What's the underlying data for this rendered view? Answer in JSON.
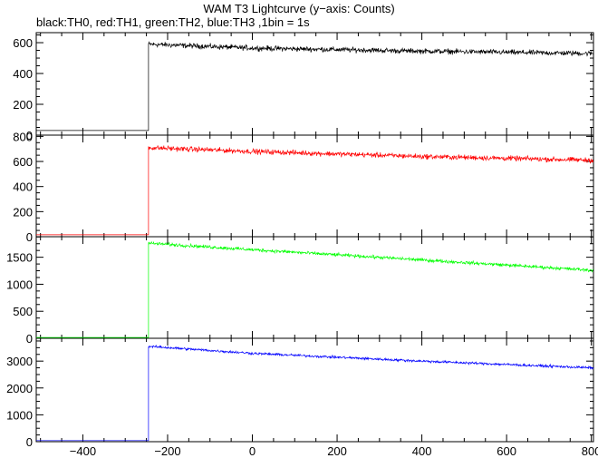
{
  "title": "WAM T3 Lightcurve (y−axis: Counts)",
  "subtitle": "black:TH0, red:TH1, green:TH2, blue:TH3 ,1bin = 1s",
  "chart_data": {
    "type": "line",
    "x_range": [
      -510,
      805
    ],
    "x_ticks": [
      -400,
      -200,
      0,
      200,
      400,
      600,
      800
    ],
    "x_tick_labels": [
      "−400",
      "−200",
      "0",
      "200",
      "400",
      "600",
      "800"
    ],
    "grid": false,
    "step_time": -245,
    "panels": [
      {
        "series": "TH0",
        "color": "#000000",
        "ylim": [
          0,
          665
        ],
        "yticks": [
          0,
          200,
          400,
          600
        ],
        "ytick_labels": [
          "0",
          "200",
          "400",
          "600"
        ],
        "pre_level": 30,
        "post_trend": [
          [
            -245,
            590
          ],
          [
            0,
            565
          ],
          [
            400,
            545
          ],
          [
            800,
            530
          ]
        ],
        "noise_amplitude": 25
      },
      {
        "series": "TH1",
        "color": "#ff0000",
        "ylim": [
          0,
          810
        ],
        "yticks": [
          0,
          200,
          400,
          600,
          800
        ],
        "ytick_labels": [
          "0",
          "200",
          "400",
          "600",
          "800"
        ],
        "pre_level": 15,
        "post_trend": [
          [
            -245,
            710
          ],
          [
            0,
            680
          ],
          [
            400,
            640
          ],
          [
            800,
            610
          ]
        ],
        "noise_amplitude": 30
      },
      {
        "series": "TH2",
        "color": "#00ff00",
        "ylim": [
          0,
          1880
        ],
        "yticks": [
          0,
          500,
          1000,
          1500
        ],
        "ytick_labels": [
          "0",
          "500",
          "1000",
          "1500"
        ],
        "pre_level": 15,
        "post_trend": [
          [
            -245,
            1760
          ],
          [
            0,
            1640
          ],
          [
            400,
            1450
          ],
          [
            800,
            1260
          ]
        ],
        "noise_amplitude": 45
      },
      {
        "series": "TH3",
        "color": "#0000ff",
        "ylim": [
          0,
          3850
        ],
        "yticks": [
          0,
          1000,
          2000,
          3000
        ],
        "ytick_labels": [
          "0",
          "1000",
          "2000",
          "3000"
        ],
        "pre_level": 40,
        "post_trend": [
          [
            -245,
            3550
          ],
          [
            0,
            3290
          ],
          [
            400,
            3000
          ],
          [
            800,
            2750
          ]
        ],
        "noise_amplitude": 70
      }
    ]
  }
}
